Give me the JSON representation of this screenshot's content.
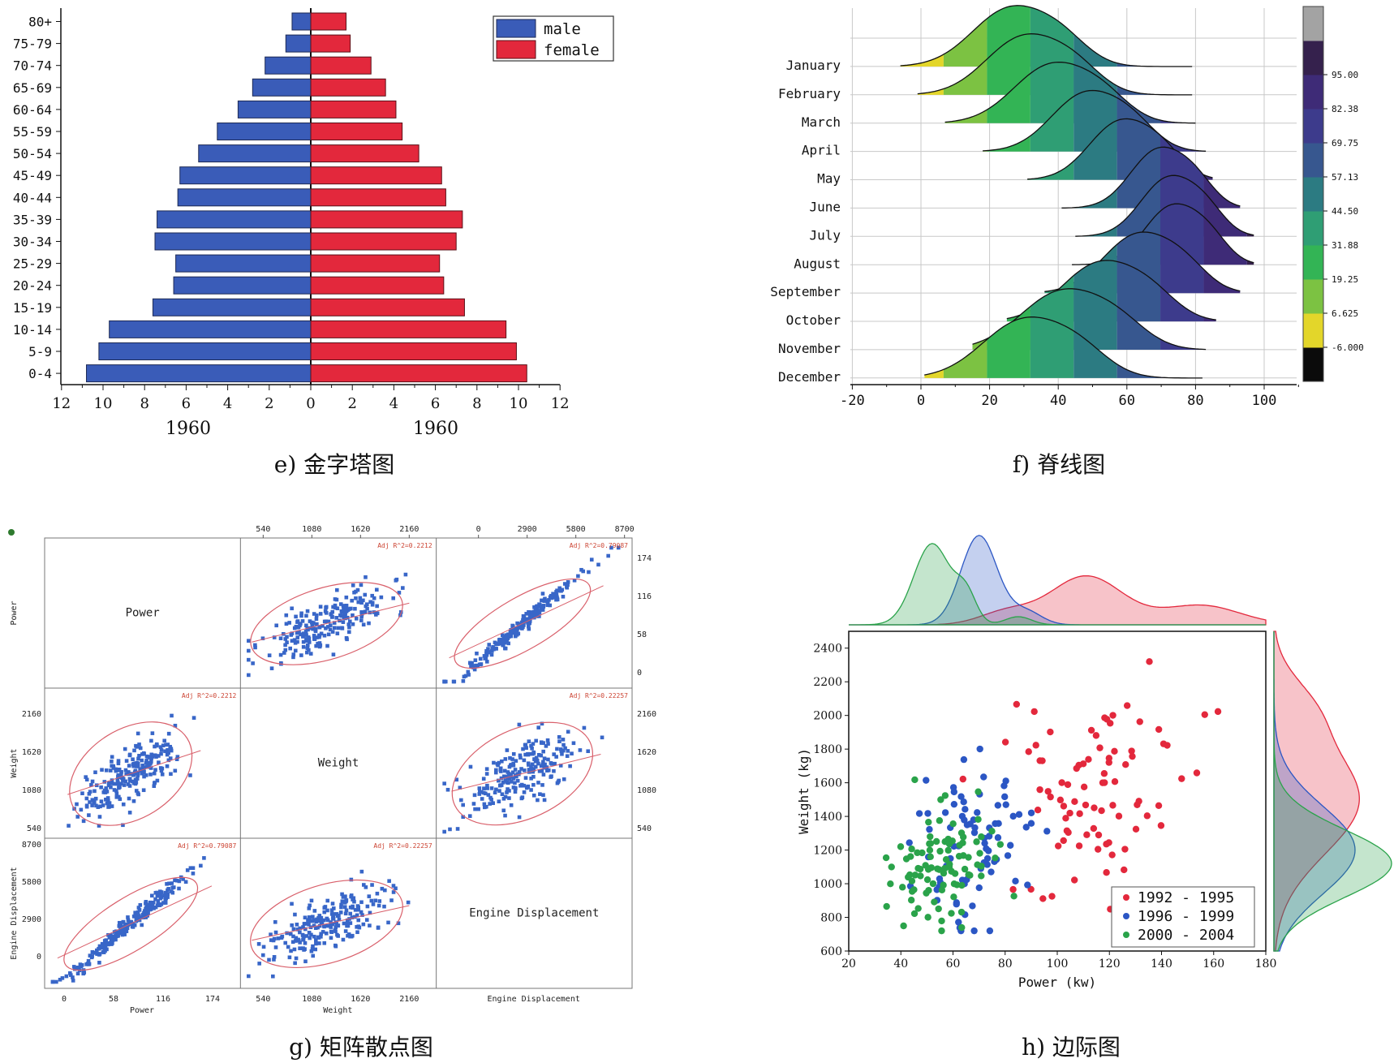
{
  "captions": {
    "e": "e) 金字塔图",
    "f": "f) 脊线图",
    "g": "g) 矩阵散点图",
    "h": "h) 边际图"
  },
  "colors": {
    "male": "#3a5cb8",
    "female": "#e3283c",
    "scatter_blue": "#3866c8",
    "ellipse": "#d9606b",
    "g1": "#e3283c",
    "g2": "#2b56c4",
    "g3": "#2aa34a"
  },
  "chart_data": [
    {
      "id": "e",
      "type": "bar",
      "orientation": "horizontal-pyramid",
      "categories": [
        "0-4",
        "5-9",
        "10-14",
        "15-19",
        "20-24",
        "25-29",
        "30-34",
        "35-39",
        "40-44",
        "45-49",
        "50-54",
        "55-59",
        "60-64",
        "65-69",
        "70-74",
        "75-79",
        "80+"
      ],
      "series": [
        {
          "name": "male",
          "values": [
            10.8,
            10.2,
            9.7,
            7.6,
            6.6,
            6.5,
            7.5,
            7.4,
            6.4,
            6.3,
            5.4,
            4.5,
            3.5,
            2.8,
            2.2,
            1.2,
            0.9
          ]
        },
        {
          "name": "female",
          "values": [
            10.4,
            9.9,
            9.4,
            7.4,
            6.4,
            6.2,
            7.0,
            7.3,
            6.5,
            6.3,
            5.2,
            4.4,
            4.1,
            3.6,
            2.9,
            1.9,
            1.7
          ]
        }
      ],
      "xticks_left": [
        "12",
        "10",
        "8",
        "6",
        "4",
        "2",
        "0"
      ],
      "xticks_right": [
        "0",
        "2",
        "4",
        "6",
        "8",
        "10",
        "12"
      ],
      "xlim": [
        0,
        12
      ],
      "xlabel_left": "1960",
      "xlabel_right": "1960",
      "legend": "top-right"
    },
    {
      "id": "f",
      "type": "area",
      "subtype": "ridgeline",
      "categories": [
        "January",
        "February",
        "March",
        "April",
        "May",
        "June",
        "July",
        "August",
        "September",
        "October",
        "November",
        "December"
      ],
      "peaks": [
        26,
        30,
        38,
        48,
        58,
        69,
        72,
        73,
        63,
        52,
        41,
        30
      ],
      "spreads": [
        11,
        11,
        11,
        10,
        9,
        8,
        8,
        8,
        10,
        11,
        12,
        12
      ],
      "ranges": [
        [
          -6,
          79
        ],
        [
          -1,
          79
        ],
        [
          7,
          80
        ],
        [
          18,
          83
        ],
        [
          31,
          85
        ],
        [
          41,
          93
        ],
        [
          45,
          97
        ],
        [
          44,
          97
        ],
        [
          36,
          93
        ],
        [
          25,
          86
        ],
        [
          15,
          83
        ],
        [
          1,
          82
        ]
      ],
      "xticks": [
        "-20",
        "0",
        "20",
        "40",
        "60",
        "80",
        "100"
      ],
      "xlim": [
        -20,
        110
      ],
      "colorbar": {
        "labels": [
          "-6.000",
          "6.625",
          "19.25",
          "31.88",
          "44.50",
          "57.13",
          "69.75",
          "82.38",
          "95.00"
        ],
        "colors": [
          "#0b0b0b",
          "#e3d62a",
          "#7cc242",
          "#33b455",
          "#2f9e74",
          "#2c7b82",
          "#37578f",
          "#3d3b8c",
          "#3e2b77",
          "#35214d",
          "#a3a3a3"
        ]
      }
    },
    {
      "id": "g",
      "type": "scatter",
      "subtype": "scatter-matrix",
      "variables": [
        "Power",
        "Weight",
        "Engine Displacement"
      ],
      "top_ticks_weight": [
        "540",
        "1080",
        "1620",
        "2160"
      ],
      "top_ticks_engine": [
        "0",
        "2900",
        "5800",
        "8700"
      ],
      "right_ticks_power": [
        "174",
        "116",
        "58",
        "0"
      ],
      "right_ticks_weight": [
        "2160",
        "1620",
        "1080",
        "540"
      ],
      "left_ticks_weight": [
        "2160",
        "1620",
        "1080",
        "540"
      ],
      "left_ticks_engine": [
        "8700",
        "5800",
        "2900",
        "0"
      ],
      "bottom_ticks_power": [
        "0",
        "58",
        "116",
        "174"
      ],
      "bottom_ticks_weight": [
        "540",
        "1080",
        "1620",
        "2160"
      ],
      "bottom_label_power": "Power",
      "bottom_label_weight": "Weight",
      "bottom_label_engine": "Engine Displacement",
      "left_label_power": "Power",
      "left_label_weight": "Weight",
      "left_label_engine": "Engine Displacement",
      "adj_r2": {
        "power_weight": "Adj R^2=0.2212",
        "power_engine": "Adj R^2=0.79087",
        "weight_engine": "Adj R^2=0.22257"
      }
    },
    {
      "id": "h",
      "type": "scatter",
      "subtype": "marginal",
      "xlabel": "Power (kw)",
      "ylabel": "Weight (kg)",
      "xlim": [
        20,
        180
      ],
      "ylim": [
        600,
        2500
      ],
      "xticks": [
        "20",
        "40",
        "60",
        "80",
        "100",
        "120",
        "140",
        "160",
        "180"
      ],
      "yticks": [
        "600",
        "800",
        "1000",
        "1200",
        "1400",
        "1600",
        "1800",
        "2000",
        "2200",
        "2400"
      ],
      "legend": "bottom-right",
      "series": [
        {
          "name": "1992 - 1995",
          "cx": 112,
          "cy": 1550,
          "sx": 20,
          "sy": 300,
          "n": 85
        },
        {
          "name": "1996 - 1999",
          "cx": 70,
          "cy": 1250,
          "sx": 11,
          "sy": 260,
          "n": 80
        },
        {
          "name": "2000 - 2004",
          "cx": 55,
          "cy": 1120,
          "sx": 10,
          "sy": 180,
          "n": 95
        }
      ]
    }
  ]
}
